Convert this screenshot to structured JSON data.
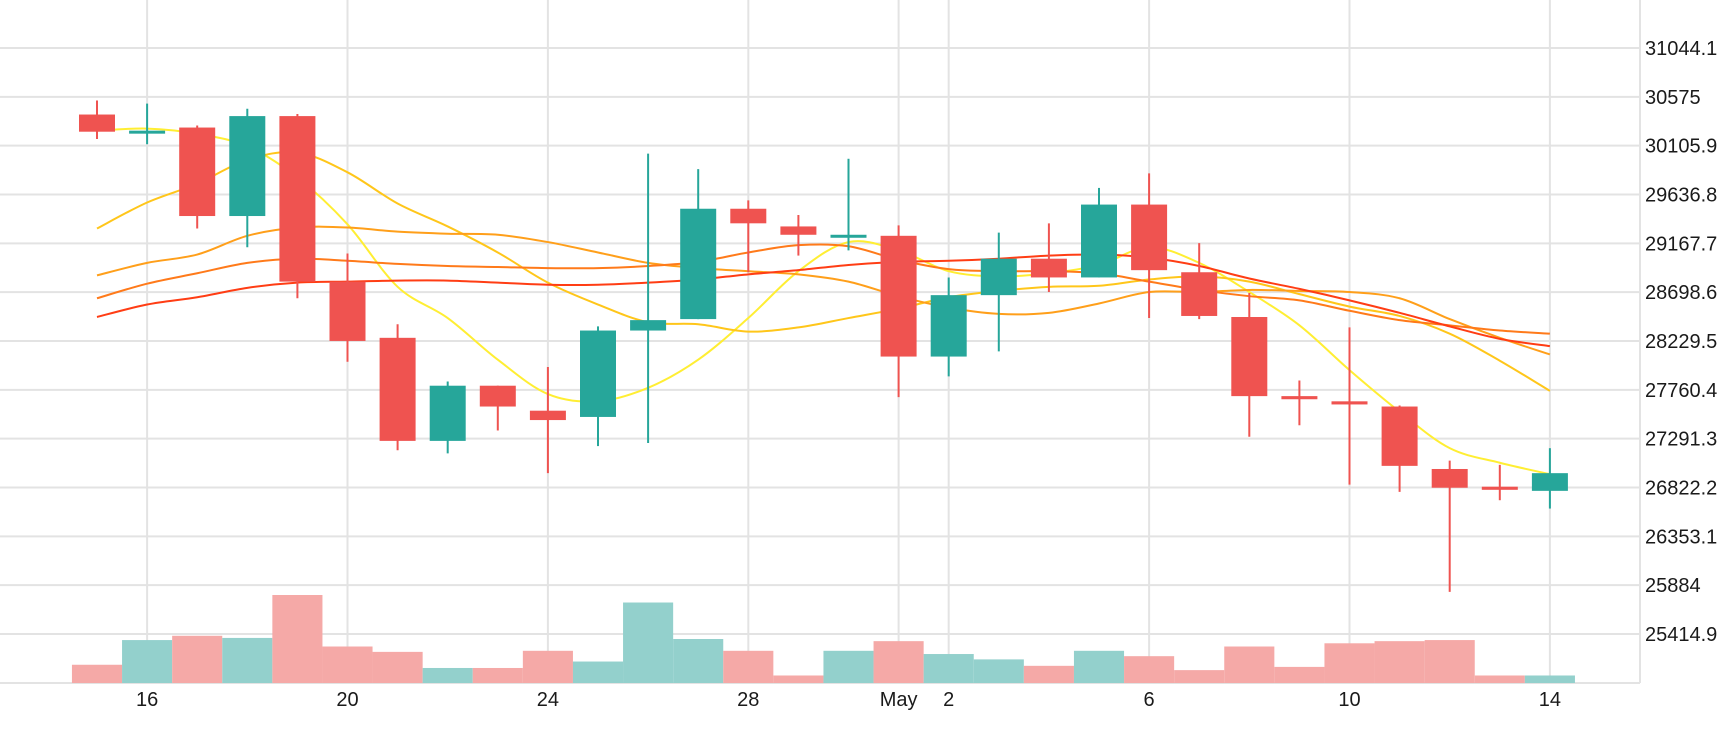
{
  "chart_data": {
    "type": "candlestick",
    "title": "",
    "xlabel": "",
    "ylabel": "",
    "grid": true,
    "ylim": [
      25000,
      31410
    ],
    "y_ticks": [
      31044.1,
      30575,
      30105.9,
      29636.8,
      29167.7,
      28698.6,
      28229.5,
      27760.4,
      27291.3,
      26822.2,
      26353.1,
      25884,
      25414.9
    ],
    "x_ticks": [
      {
        "day": 16,
        "label": "16"
      },
      {
        "day": 20,
        "label": "20"
      },
      {
        "day": 24,
        "label": "24"
      },
      {
        "day": 28,
        "label": "28"
      },
      {
        "day": 31,
        "label": "May"
      },
      {
        "day": 32,
        "label": "2"
      },
      {
        "day": 36,
        "label": "6"
      },
      {
        "day": 40,
        "label": "10"
      },
      {
        "day": 44,
        "label": "14"
      }
    ],
    "colors": {
      "up": "#26a69a",
      "down": "#ef5350",
      "up_volume": "#93d0cc",
      "down_volume": "#f5a9a7"
    },
    "candles": [
      {
        "day": 15,
        "open": 30405,
        "high": 30540,
        "low": 30170,
        "close": 30240
      },
      {
        "day": 16,
        "open": 30240,
        "high": 30510,
        "low": 30120,
        "close": 30250
      },
      {
        "day": 17,
        "open": 30280,
        "high": 30300,
        "low": 29310,
        "close": 29430
      },
      {
        "day": 18,
        "open": 29430,
        "high": 30460,
        "low": 29130,
        "close": 30390
      },
      {
        "day": 19,
        "open": 30390,
        "high": 30410,
        "low": 28640,
        "close": 28800
      },
      {
        "day": 20,
        "open": 28800,
        "high": 29070,
        "low": 28030,
        "close": 28230
      },
      {
        "day": 21,
        "open": 28260,
        "high": 28390,
        "low": 27180,
        "close": 27270
      },
      {
        "day": 22,
        "open": 27270,
        "high": 27840,
        "low": 27150,
        "close": 27800
      },
      {
        "day": 23,
        "open": 27800,
        "high": 27800,
        "low": 27370,
        "close": 27600
      },
      {
        "day": 24,
        "open": 27560,
        "high": 27980,
        "low": 26960,
        "close": 27470
      },
      {
        "day": 25,
        "open": 27500,
        "high": 28370,
        "low": 27220,
        "close": 28330
      },
      {
        "day": 26,
        "open": 28330,
        "high": 30030,
        "low": 27250,
        "close": 28430
      },
      {
        "day": 27,
        "open": 28440,
        "high": 29880,
        "low": 28440,
        "close": 29500
      },
      {
        "day": 28,
        "open": 29500,
        "high": 29580,
        "low": 28890,
        "close": 29360
      },
      {
        "day": 29,
        "open": 29330,
        "high": 29440,
        "low": 29050,
        "close": 29250
      },
      {
        "day": 30,
        "open": 29250,
        "high": 29980,
        "low": 29100,
        "close": 29250
      },
      {
        "day": 31,
        "open": 29240,
        "high": 29340,
        "low": 27690,
        "close": 28080
      },
      {
        "day": 32,
        "open": 28080,
        "high": 28840,
        "low": 27890,
        "close": 28670
      },
      {
        "day": 33,
        "open": 28670,
        "high": 29270,
        "low": 28130,
        "close": 29020
      },
      {
        "day": 34,
        "open": 29020,
        "high": 29360,
        "low": 28700,
        "close": 28840
      },
      {
        "day": 35,
        "open": 28840,
        "high": 29700,
        "low": 28840,
        "close": 29540
      },
      {
        "day": 36,
        "open": 29540,
        "high": 29840,
        "low": 28450,
        "close": 28910
      },
      {
        "day": 37,
        "open": 28890,
        "high": 29170,
        "low": 28440,
        "close": 28470
      },
      {
        "day": 38,
        "open": 28460,
        "high": 28690,
        "low": 27310,
        "close": 27700
      },
      {
        "day": 39,
        "open": 27700,
        "high": 27850,
        "low": 27420,
        "close": 27670
      },
      {
        "day": 40,
        "open": 27650,
        "high": 28360,
        "low": 26850,
        "close": 27620
      },
      {
        "day": 41,
        "open": 27600,
        "high": 27610,
        "low": 26780,
        "close": 27030
      },
      {
        "day": 42,
        "open": 27000,
        "high": 27080,
        "low": 25820,
        "close": 26820
      },
      {
        "day": 43,
        "open": 26830,
        "high": 27040,
        "low": 26700,
        "close": 26800
      },
      {
        "day": 44,
        "open": 26790,
        "high": 27200,
        "low": 26620,
        "close": 26960
      }
    ],
    "volume_scale": 100,
    "volumes": [
      {
        "day": 15,
        "value": 17,
        "up": false
      },
      {
        "day": 16,
        "value": 40,
        "up": true
      },
      {
        "day": 17,
        "value": 44,
        "up": false
      },
      {
        "day": 18,
        "value": 42,
        "up": true
      },
      {
        "day": 19,
        "value": 82,
        "up": false
      },
      {
        "day": 20,
        "value": 34,
        "up": false
      },
      {
        "day": 21,
        "value": 29,
        "up": false
      },
      {
        "day": 22,
        "value": 14,
        "up": true
      },
      {
        "day": 23,
        "value": 14,
        "up": false
      },
      {
        "day": 24,
        "value": 30,
        "up": false
      },
      {
        "day": 25,
        "value": 20,
        "up": true
      },
      {
        "day": 26,
        "value": 75,
        "up": true
      },
      {
        "day": 27,
        "value": 41,
        "up": true
      },
      {
        "day": 28,
        "value": 30,
        "up": false
      },
      {
        "day": 29,
        "value": 7,
        "up": false
      },
      {
        "day": 30,
        "value": 30,
        "up": true
      },
      {
        "day": 31,
        "value": 39,
        "up": false
      },
      {
        "day": 32,
        "value": 27,
        "up": true
      },
      {
        "day": 33,
        "value": 22,
        "up": true
      },
      {
        "day": 34,
        "value": 16,
        "up": false
      },
      {
        "day": 35,
        "value": 30,
        "up": true
      },
      {
        "day": 36,
        "value": 25,
        "up": false
      },
      {
        "day": 37,
        "value": 12,
        "up": false
      },
      {
        "day": 38,
        "value": 34,
        "up": false
      },
      {
        "day": 39,
        "value": 15,
        "up": false
      },
      {
        "day": 40,
        "value": 37,
        "up": false
      },
      {
        "day": 41,
        "value": 39,
        "up": false
      },
      {
        "day": 42,
        "value": 40,
        "up": false
      },
      {
        "day": 43,
        "value": 7,
        "up": false
      },
      {
        "day": 44,
        "value": 7,
        "up": true
      }
    ],
    "moving_averages": [
      {
        "color": "#ffee33",
        "points": [
          [
            15,
            30250
          ],
          [
            16,
            30270
          ],
          [
            17,
            30220
          ],
          [
            18,
            30100
          ],
          [
            19,
            29800
          ],
          [
            20,
            29350
          ],
          [
            21,
            28750
          ],
          [
            22,
            28450
          ],
          [
            23,
            28050
          ],
          [
            24,
            27720
          ],
          [
            25,
            27650
          ],
          [
            26,
            27780
          ],
          [
            27,
            28050
          ],
          [
            28,
            28450
          ],
          [
            29,
            28900
          ],
          [
            30,
            29180
          ],
          [
            31,
            29100
          ],
          [
            32,
            28900
          ],
          [
            33,
            28850
          ],
          [
            34,
            28880
          ],
          [
            35,
            28960
          ],
          [
            36,
            29130
          ],
          [
            37,
            28980
          ],
          [
            38,
            28700
          ],
          [
            39,
            28380
          ],
          [
            40,
            27950
          ],
          [
            41,
            27550
          ],
          [
            42,
            27200
          ],
          [
            43,
            27060
          ],
          [
            44,
            26950
          ]
        ]
      },
      {
        "color": "#ffc61a",
        "points": [
          [
            15,
            29310
          ],
          [
            16,
            29560
          ],
          [
            17,
            29740
          ],
          [
            18,
            29970
          ],
          [
            19,
            30040
          ],
          [
            20,
            29850
          ],
          [
            21,
            29550
          ],
          [
            22,
            29330
          ],
          [
            23,
            29080
          ],
          [
            24,
            28790
          ],
          [
            25,
            28580
          ],
          [
            26,
            28410
          ],
          [
            27,
            28390
          ],
          [
            28,
            28320
          ],
          [
            29,
            28360
          ],
          [
            30,
            28450
          ],
          [
            31,
            28540
          ],
          [
            32,
            28650
          ],
          [
            33,
            28710
          ],
          [
            34,
            28750
          ],
          [
            35,
            28760
          ],
          [
            36,
            28820
          ],
          [
            37,
            28850
          ],
          [
            38,
            28800
          ],
          [
            39,
            28680
          ],
          [
            40,
            28560
          ],
          [
            41,
            28470
          ],
          [
            42,
            28300
          ],
          [
            43,
            28040
          ],
          [
            44,
            27750
          ]
        ]
      },
      {
        "color": "#ff9f1a",
        "points": [
          [
            15,
            28860
          ],
          [
            16,
            28980
          ],
          [
            17,
            29060
          ],
          [
            18,
            29240
          ],
          [
            19,
            29320
          ],
          [
            20,
            29320
          ],
          [
            21,
            29280
          ],
          [
            22,
            29260
          ],
          [
            23,
            29250
          ],
          [
            24,
            29180
          ],
          [
            25,
            29080
          ],
          [
            26,
            28980
          ],
          [
            27,
            28930
          ],
          [
            28,
            28900
          ],
          [
            29,
            28870
          ],
          [
            30,
            28800
          ],
          [
            31,
            28660
          ],
          [
            32,
            28550
          ],
          [
            33,
            28490
          ],
          [
            34,
            28500
          ],
          [
            35,
            28590
          ],
          [
            36,
            28700
          ],
          [
            37,
            28700
          ],
          [
            38,
            28720
          ],
          [
            39,
            28710
          ],
          [
            40,
            28700
          ],
          [
            41,
            28640
          ],
          [
            42,
            28440
          ],
          [
            43,
            28260
          ],
          [
            44,
            28100
          ]
        ]
      },
      {
        "color": "#ff7a1a",
        "points": [
          [
            15,
            28640
          ],
          [
            16,
            28780
          ],
          [
            17,
            28880
          ],
          [
            18,
            28980
          ],
          [
            19,
            29020
          ],
          [
            20,
            29000
          ],
          [
            21,
            28970
          ],
          [
            22,
            28950
          ],
          [
            23,
            28940
          ],
          [
            24,
            28930
          ],
          [
            25,
            28930
          ],
          [
            26,
            28950
          ],
          [
            27,
            28990
          ],
          [
            28,
            29080
          ],
          [
            29,
            29150
          ],
          [
            30,
            29140
          ],
          [
            31,
            29010
          ],
          [
            32,
            28920
          ],
          [
            33,
            28900
          ],
          [
            34,
            28900
          ],
          [
            35,
            28880
          ],
          [
            36,
            28800
          ],
          [
            37,
            28720
          ],
          [
            38,
            28660
          ],
          [
            39,
            28620
          ],
          [
            40,
            28520
          ],
          [
            41,
            28430
          ],
          [
            42,
            28380
          ],
          [
            43,
            28330
          ],
          [
            44,
            28300
          ]
        ]
      },
      {
        "color": "#ff3d14",
        "points": [
          [
            15,
            28460
          ],
          [
            16,
            28580
          ],
          [
            17,
            28650
          ],
          [
            18,
            28740
          ],
          [
            19,
            28790
          ],
          [
            20,
            28800
          ],
          [
            21,
            28810
          ],
          [
            22,
            28810
          ],
          [
            23,
            28790
          ],
          [
            24,
            28770
          ],
          [
            25,
            28770
          ],
          [
            26,
            28790
          ],
          [
            27,
            28820
          ],
          [
            28,
            28870
          ],
          [
            29,
            28910
          ],
          [
            30,
            28960
          ],
          [
            31,
            28990
          ],
          [
            32,
            29000
          ],
          [
            33,
            29020
          ],
          [
            34,
            29050
          ],
          [
            35,
            29060
          ],
          [
            36,
            29030
          ],
          [
            37,
            28950
          ],
          [
            38,
            28830
          ],
          [
            39,
            28730
          ],
          [
            40,
            28620
          ],
          [
            41,
            28500
          ],
          [
            42,
            28370
          ],
          [
            43,
            28250
          ],
          [
            44,
            28180
          ]
        ]
      }
    ]
  }
}
